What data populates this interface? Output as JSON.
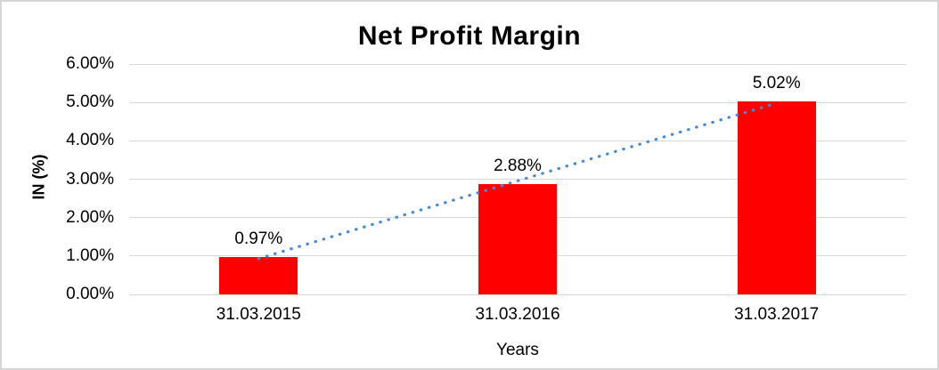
{
  "chart_data": {
    "type": "bar",
    "title": "Net Profit Margin",
    "categories": [
      "31.03.2015",
      "31.03.2016",
      "31.03.2017"
    ],
    "values": [
      0.97,
      2.88,
      5.02
    ],
    "data_labels": [
      "0.97%",
      "2.88%",
      "5.02%"
    ],
    "xlabel": "Years",
    "ylabel": "IN (%)",
    "ylim": [
      0,
      6
    ],
    "ytick_step": 1,
    "ytick_labels": [
      "0.00%",
      "1.00%",
      "2.00%",
      "3.00%",
      "4.00%",
      "5.00%",
      "6.00%"
    ],
    "grid": true,
    "legend": "none",
    "bar_color": "#ff0000",
    "gridline_color": "#d9d9d9",
    "trendline": {
      "type": "linear",
      "style": "dotted",
      "color": "#4a89d4"
    }
  }
}
